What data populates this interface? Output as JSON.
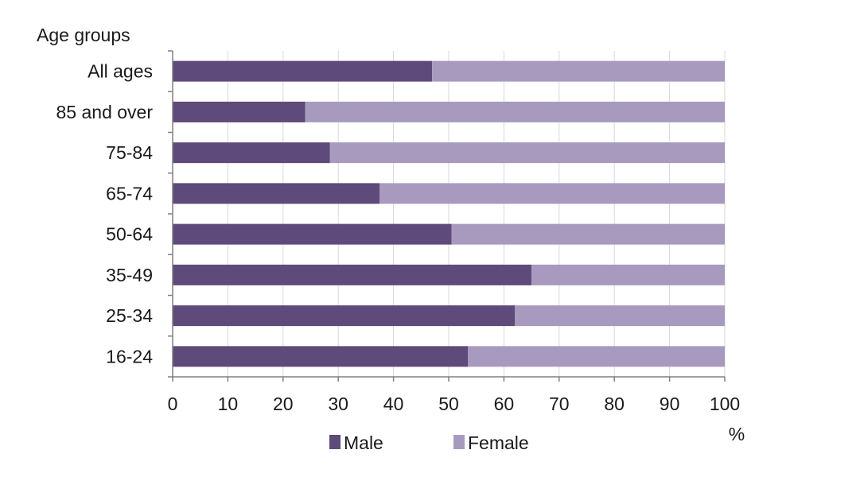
{
  "chart_data": {
    "type": "bar",
    "orientation": "horizontal",
    "stacked": true,
    "y_axis_title": "Age groups",
    "x_unit_label": "%",
    "categories": [
      "All ages",
      "85 and over",
      "75-84",
      "65-74",
      "50-64",
      "35-49",
      "25-34",
      "16-24"
    ],
    "series": [
      {
        "name": "Male",
        "color": "#5e4a7b",
        "values": [
          47,
          24,
          28.5,
          37.5,
          50.5,
          65,
          62,
          53.5
        ]
      },
      {
        "name": "Female",
        "color": "#a89abf",
        "values": [
          53,
          76,
          71.5,
          62.5,
          49.5,
          35,
          38,
          46.5
        ]
      }
    ],
    "xlim": [
      0,
      100
    ],
    "x_ticks": [
      0,
      10,
      20,
      30,
      40,
      50,
      60,
      70,
      80,
      90,
      100
    ],
    "grid": "vertical",
    "legend_position": "bottom"
  }
}
